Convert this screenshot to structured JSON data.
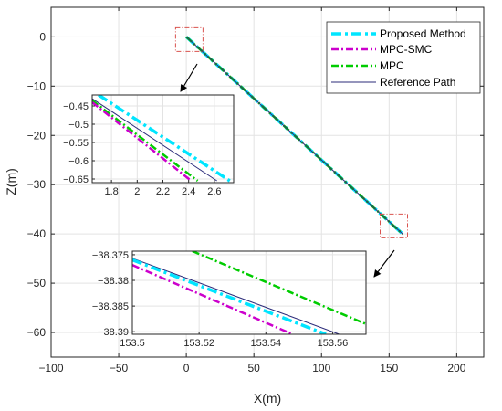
{
  "chart_data": {
    "type": "line",
    "main": {
      "xlabel": "X(m)",
      "ylabel": "Z(m)",
      "xlim": [
        -100,
        220
      ],
      "ylim": [
        -65,
        6
      ],
      "xticks": [
        -100,
        -50,
        0,
        50,
        100,
        150,
        200
      ],
      "yticks": [
        0,
        -10,
        -20,
        -30,
        -40,
        -50,
        -60
      ],
      "grid": true,
      "legend_position": "top-right",
      "series": [
        {
          "name": "Proposed Method",
          "color": "#00e5ff",
          "style": "dash-dot",
          "x": [
            0,
            160
          ],
          "y": [
            0,
            -40
          ]
        },
        {
          "name": "MPC-SMC",
          "color": "#cc00cc",
          "style": "dash-dot",
          "x": [
            0,
            160
          ],
          "y": [
            0,
            -40
          ]
        },
        {
          "name": "MPC",
          "color": "#00cc00",
          "style": "dash-dot",
          "x": [
            0,
            160
          ],
          "y": [
            0,
            -40
          ]
        },
        {
          "name": "Reference Path",
          "color": "#2b2b7a",
          "style": "solid",
          "x": [
            0,
            160
          ],
          "y": [
            0,
            -40
          ]
        }
      ]
    },
    "insets": [
      {
        "location": "upper-left",
        "xlim": [
          1.65,
          2.75
        ],
        "ylim": [
          -0.66,
          -0.42
        ],
        "xticks": [
          1.8,
          2,
          2.2,
          2.4,
          2.6
        ],
        "yticks": [
          -0.45,
          -0.5,
          -0.55,
          -0.6,
          -0.65
        ],
        "series": [
          {
            "name": "Proposed Method",
            "x": [
              1.7,
              2.72
            ],
            "y": [
              -0.42,
              -0.655
            ]
          },
          {
            "name": "Reference Path",
            "x": [
              1.65,
              2.62
            ],
            "y": [
              -0.43,
              -0.655
            ]
          },
          {
            "name": "MPC",
            "x": [
              1.65,
              2.47
            ],
            "y": [
              -0.435,
              -0.655
            ]
          },
          {
            "name": "MPC-SMC",
            "x": [
              1.65,
              2.42
            ],
            "y": [
              -0.44,
              -0.655
            ]
          }
        ]
      },
      {
        "location": "lower-right",
        "xlim": [
          153.5,
          153.57
        ],
        "ylim": [
          -38.3905,
          -38.3743
        ],
        "xticks": [
          153.5,
          153.52,
          153.54,
          153.56
        ],
        "yticks": [
          -38.375,
          -38.38,
          -38.385,
          -38.39
        ],
        "series": [
          {
            "name": "MPC",
            "x": [
              153.518,
              153.57
            ],
            "y": [
              -38.3743,
              -38.3885
            ]
          },
          {
            "name": "Reference Path",
            "x": [
              153.5,
              153.562
            ],
            "y": [
              -38.3757,
              -38.3905
            ]
          },
          {
            "name": "Proposed Method",
            "x": [
              153.5,
              153.558
            ],
            "y": [
              -38.376,
              -38.3905
            ]
          },
          {
            "name": "MPC-SMC",
            "x": [
              153.5,
              153.548
            ],
            "y": [
              -38.377,
              -38.3905
            ]
          }
        ]
      }
    ],
    "zoom_box_centers": [
      {
        "x": 2.2,
        "y": -0.55
      },
      {
        "x": 153.5,
        "y": -38.38
      }
    ]
  }
}
